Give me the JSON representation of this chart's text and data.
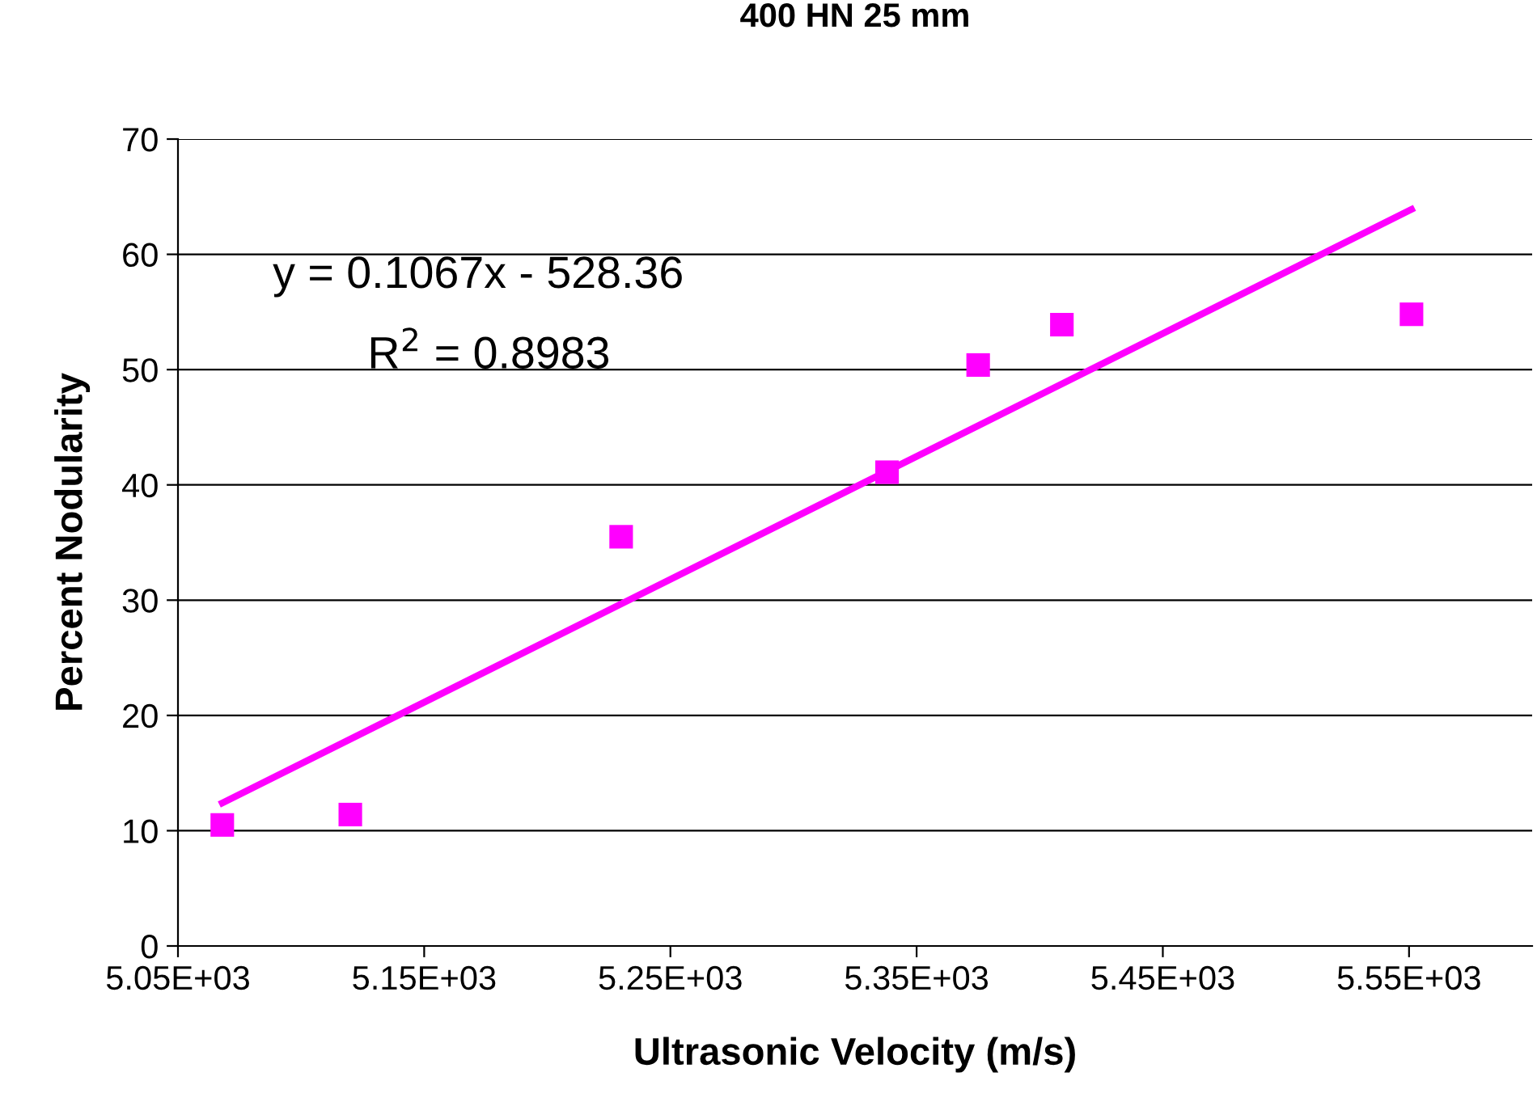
{
  "chart_data": {
    "type": "scatter",
    "title": "400 HN 25 mm",
    "xlabel": "Ultrasonic Velocity (m/s)",
    "ylabel": "Percent Nodularity",
    "x": [
      5068,
      5120,
      5230,
      5338,
      5375,
      5409,
      5551
    ],
    "series": [
      {
        "color": "#ff00ff",
        "marker": "square",
        "values": [
          10.5,
          11.4,
          35.5,
          41.1,
          50.4,
          53.9,
          54.8
        ]
      },
      {
        "type": "line",
        "color": "#ff00ff",
        "marker": "none",
        "x": [
          5068,
          5551
        ],
        "values": [
          12.4,
          63.9
        ]
      }
    ],
    "xlim": [
      5050,
      5600
    ],
    "xticks": [
      {
        "value": 5050,
        "label": "5.05E+03"
      },
      {
        "value": 5150,
        "label": "5.15E+03"
      },
      {
        "value": 5250,
        "label": "5.25E+03"
      },
      {
        "value": 5350,
        "label": "5.35E+03"
      },
      {
        "value": 5450,
        "label": "5.45E+03"
      },
      {
        "value": 5550,
        "label": "5.55E+03"
      }
    ],
    "ylim": [
      0,
      70
    ],
    "yticks": [
      0,
      10,
      20,
      30,
      40,
      50,
      60,
      70
    ],
    "grid": "y",
    "legend": false,
    "annotations": [
      "y = 0.1067x - 528.36",
      "R$^{2}$ = 0.8983"
    ]
  }
}
